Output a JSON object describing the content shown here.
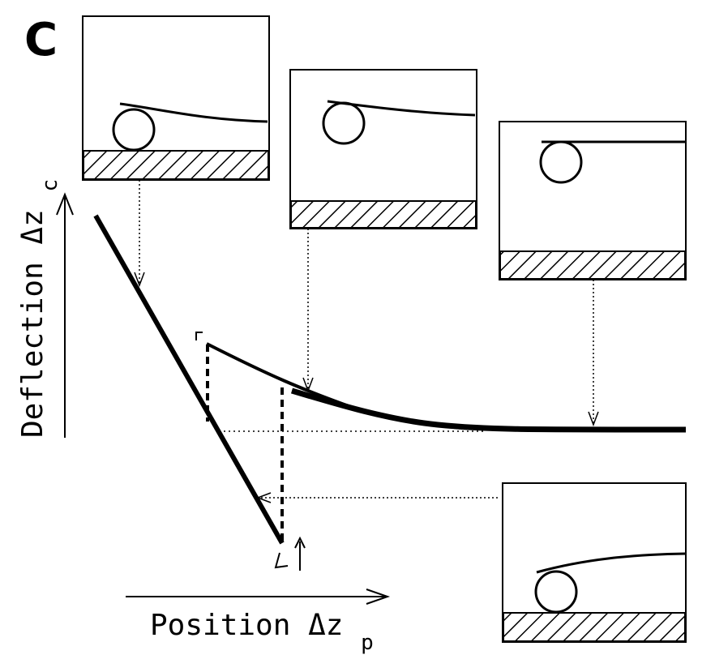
{
  "panel_label": "C",
  "y_axis": {
    "label": "Deflection Δz",
    "subscript": "c"
  },
  "x_axis": {
    "label": "Position Δz",
    "subscript": "p"
  },
  "colors": {
    "ink": "#000000",
    "background": "#ffffff"
  },
  "insets": [
    {
      "name": "inset-contact-bent"
    },
    {
      "name": "inset-near-contact"
    },
    {
      "name": "inset-free-cantilever"
    },
    {
      "name": "inset-retract-adhesion"
    }
  ]
}
